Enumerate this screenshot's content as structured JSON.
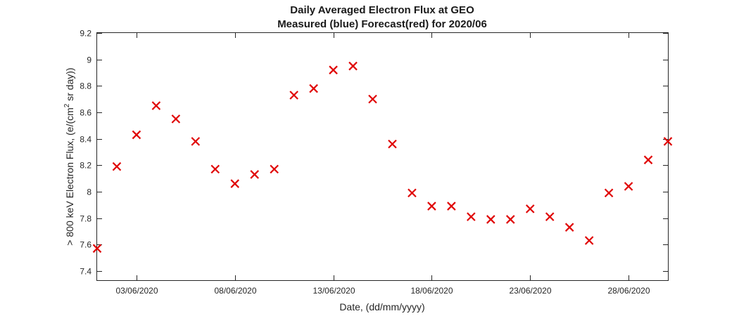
{
  "chart_data": {
    "type": "scatter",
    "title": "Daily Averaged Electron Flux at GEO",
    "subtitle": "Measured (blue) Forecast(red) for 2020/06",
    "xlabel": "Date, (dd/mm/yyyy)",
    "ylabel_parts": [
      ">  800 keV Electron Flux, (e/(cm",
      "2",
      " sr day))"
    ],
    "xlim": [
      1,
      30
    ],
    "ylim": [
      7.33,
      9.2
    ],
    "grid": false,
    "x_ticks": [
      {
        "day": 3,
        "label": "03/06/2020"
      },
      {
        "day": 8,
        "label": "08/06/2020"
      },
      {
        "day": 13,
        "label": "13/06/2020"
      },
      {
        "day": 18,
        "label": "18/06/2020"
      },
      {
        "day": 23,
        "label": "23/06/2020"
      },
      {
        "day": 28,
        "label": "28/06/2020"
      }
    ],
    "y_ticks": [
      {
        "value": 7.4,
        "label": "7.4"
      },
      {
        "value": 7.6,
        "label": "7.6"
      },
      {
        "value": 7.8,
        "label": "7.8"
      },
      {
        "value": 8.0,
        "label": "8"
      },
      {
        "value": 8.2,
        "label": "8.2"
      },
      {
        "value": 8.4,
        "label": "8.4"
      },
      {
        "value": 8.6,
        "label": "8.6"
      },
      {
        "value": 8.8,
        "label": "8.8"
      },
      {
        "value": 9.0,
        "label": "9"
      },
      {
        "value": 9.2,
        "label": "9.2"
      }
    ],
    "series": [
      {
        "color": "#e00000",
        "marker": "x",
        "x": [
          "01/06/2020",
          "02/06/2020",
          "03/06/2020",
          "04/06/2020",
          "05/06/2020",
          "06/06/2020",
          "07/06/2020",
          "08/06/2020",
          "09/06/2020",
          "10/06/2020",
          "11/06/2020",
          "12/06/2020",
          "13/06/2020",
          "14/06/2020",
          "15/06/2020",
          "16/06/2020",
          "17/06/2020",
          "18/06/2020",
          "19/06/2020",
          "20/06/2020",
          "21/06/2020",
          "22/06/2020",
          "23/06/2020",
          "24/06/2020",
          "25/06/2020",
          "26/06/2020",
          "27/06/2020",
          "28/06/2020",
          "29/06/2020",
          "30/06/2020"
        ],
        "values": [
          7.57,
          8.19,
          8.43,
          8.65,
          8.55,
          8.38,
          8.17,
          8.06,
          8.13,
          8.17,
          8.73,
          8.78,
          8.92,
          8.95,
          8.7,
          8.36,
          7.99,
          7.89,
          7.89,
          7.81,
          7.79,
          7.79,
          7.87,
          7.81,
          7.73,
          7.63,
          7.99,
          8.04,
          8.24,
          8.38
        ]
      }
    ]
  }
}
